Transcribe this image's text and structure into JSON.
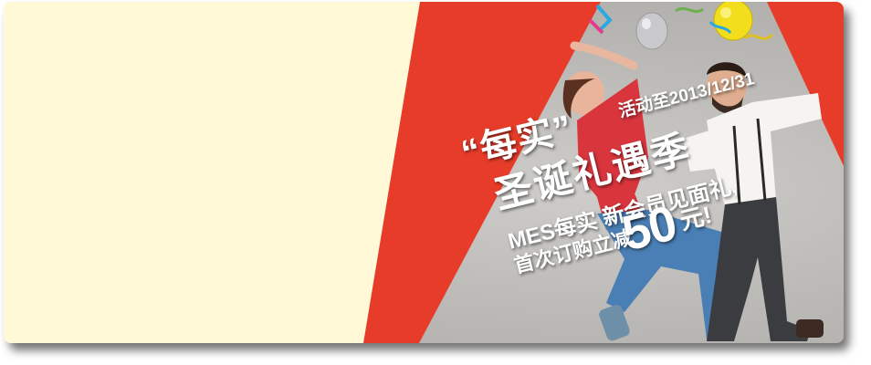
{
  "banner": {
    "headline_quote": "“每实”",
    "promo_date": "活动至2013/12/31",
    "title": "圣诞礼遇季",
    "offer_line1": "MES每实 新会员见面礼,",
    "offer_line2": "首次订购立减",
    "discount_amount": "50",
    "discount_unit": "元!"
  },
  "colors": {
    "cream_panel": "#fff9d7",
    "red_band": "#e73c2a",
    "text": "#ffffff"
  },
  "icons": [
    "balloon-silver-icon",
    "balloon-yellow-icon",
    "confetti-icon"
  ]
}
